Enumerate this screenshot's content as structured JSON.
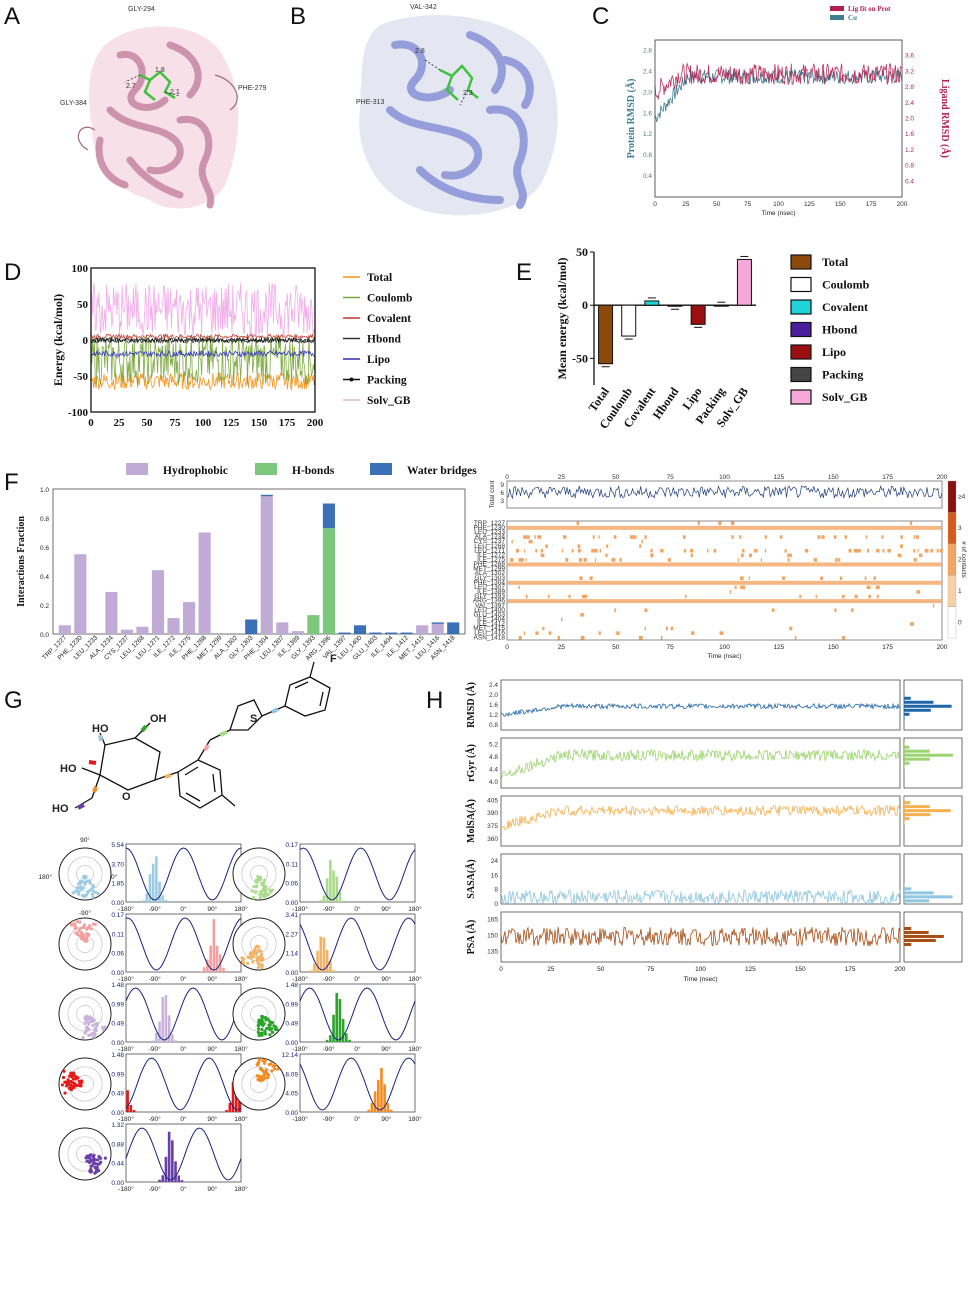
{
  "panel_labels": {
    "a": "A",
    "b": "B",
    "c": "C",
    "d": "D",
    "e": "E",
    "f": "F",
    "g": "G",
    "h": "H"
  },
  "panelA": {
    "residues": [
      "GLY-294",
      "GLY-384",
      "PHE-279"
    ],
    "distances": [
      "2.7",
      "1.8",
      "2.1"
    ]
  },
  "panelB": {
    "residues": [
      "VAL-342",
      "PHE-313"
    ],
    "distances": [
      "2.8",
      "2.3"
    ]
  },
  "chart_data": [
    {
      "id": "C",
      "type": "line",
      "xlabel": "Time (nsec)",
      "ylabel_left": "Protein RMSD (Å)",
      "ylabel_right": "Ligand RMSD (Å)",
      "xlim": [
        0,
        200
      ],
      "ylim_left": [
        0,
        3.0
      ],
      "ylim_right": [
        0,
        4.0
      ],
      "xticks": [
        "0",
        "25",
        "50",
        "75",
        "100",
        "125",
        "150",
        "175",
        "200"
      ],
      "yticks_left": [
        "0.4",
        "0.8",
        "1.2",
        "1.6",
        "2.0",
        "2.4",
        "2.8"
      ],
      "yticks_right": [
        "0.4",
        "0.8",
        "1.2",
        "1.6",
        "2.0",
        "2.4",
        "2.8",
        "3.2",
        "3.6"
      ],
      "legend": [
        "Lig fit on Prot",
        "Cα"
      ],
      "series": [
        {
          "name": "Lig fit on Prot",
          "color": "#b3204f",
          "mean": 2.35
        },
        {
          "name": "Cα",
          "color": "#3f7f93",
          "mean": 2.3
        }
      ]
    },
    {
      "id": "D",
      "type": "line",
      "xlabel": "",
      "ylabel": "Energy (kcal/mol)",
      "xlim": [
        0,
        200
      ],
      "ylim": [
        -100,
        100
      ],
      "xticks": [
        "0",
        "25",
        "50",
        "75",
        "100",
        "125",
        "150",
        "175",
        "200"
      ],
      "yticks": [
        "-100",
        "-50",
        "0",
        "50",
        "100"
      ],
      "series": [
        {
          "name": "Total",
          "color": "#f7941d",
          "mean": -57
        },
        {
          "name": "Coulomb",
          "color": "#7aa83c",
          "mean": -28
        },
        {
          "name": "Covalent",
          "color": "#c0392b",
          "mean": 5
        },
        {
          "name": "Hbond",
          "color": "#333333",
          "mean": -1
        },
        {
          "name": "Lipo",
          "color": "#2f2fbf",
          "mean": -19
        },
        {
          "name": "Packing",
          "color": "#111111",
          "mean": 0
        },
        {
          "name": "Solv_GB",
          "color": "#f0a8e8",
          "mean": 42
        }
      ]
    },
    {
      "id": "E",
      "type": "bar",
      "ylabel": "Mean energy (kcal/mol)",
      "ylim": [
        -75,
        50
      ],
      "yticks": [
        "-50",
        "0",
        "50"
      ],
      "categories": [
        "Total",
        "Coulomb",
        "Covalent",
        "Hbond",
        "Lipo",
        "Packing",
        "Solv_GB"
      ],
      "values": [
        -55,
        -29,
        4,
        -1,
        -18,
        0,
        43
      ],
      "colors": [
        "#8b4a0c",
        "#ffffff",
        "#1fd3d8",
        "#4b1e9e",
        "#9a1010",
        "#444444",
        "#f6a8d8"
      ]
    },
    {
      "id": "F",
      "type": "bar",
      "stacked": true,
      "ylabel": "Interactions Fraction",
      "ylim": [
        0,
        1.0
      ],
      "yticks": [
        "0.0",
        "0.2",
        "0.4",
        "0.6",
        "0.8",
        "1.0"
      ],
      "legend": [
        "Hydrophobic",
        "H-bonds",
        "Water bridges"
      ],
      "colors": [
        "#c0abd6",
        "#7cc77c",
        "#3b6fb6"
      ],
      "categories": [
        "TRP_1227",
        "PHE_1230",
        "LEU_1233",
        "ALA_1234",
        "CYS_1237",
        "LEU_1268",
        "LEU_1271",
        "ILE_1272",
        "ILE_1275",
        "PHE_1288",
        "MET_1299",
        "ALA_1302",
        "GLY_1303",
        "PHE_1304",
        "LEU_1307",
        "ILE_1389",
        "GLY_1393",
        "ARG_1396",
        "VAL_1397",
        "LEU_1400",
        "GLU_1403",
        "ILE_1404",
        "ILE_1412",
        "MET_1415",
        "LEU_1416",
        "ASN_1418"
      ],
      "series": [
        {
          "name": "Hydrophobic",
          "values": [
            0.06,
            0.55,
            0.0,
            0.29,
            0.03,
            0.05,
            0.44,
            0.11,
            0.22,
            0.7,
            0.0,
            0.0,
            0.0,
            0.95,
            0.08,
            0.02,
            0.0,
            0.0,
            0.0,
            0.0,
            0.0,
            0.0,
            0.0,
            0.06,
            0.07,
            0.0
          ]
        },
        {
          "name": "H-bonds",
          "values": [
            0,
            0,
            0,
            0,
            0,
            0,
            0,
            0,
            0,
            0,
            0,
            0,
            0,
            0,
            0,
            0,
            0.13,
            0.73,
            0,
            0,
            0,
            0,
            0,
            0,
            0,
            0
          ]
        },
        {
          "name": "Water bridges",
          "values": [
            0,
            0,
            0,
            0,
            0,
            0,
            0,
            0,
            0,
            0,
            0,
            0,
            0.1,
            0.01,
            0,
            0,
            0,
            0.17,
            0.01,
            0.06,
            0.01,
            0.01,
            0.01,
            0,
            0.01,
            0.08
          ]
        }
      ]
    },
    {
      "id": "F2",
      "type": "heatmap",
      "xlabel": "Time (nsec)",
      "ylabel_top": "Total cont",
      "ylabel_right": "# of contacts",
      "xticks": [
        "0",
        "25",
        "50",
        "75",
        "100",
        "125",
        "150",
        "175",
        "200"
      ],
      "cbar_ticks": [
        "0",
        "1",
        "2",
        "3",
        "≥4"
      ],
      "rows": [
        "TRP_1227",
        "PHE_1230",
        "LEU_1233",
        "ALA_1234",
        "CYS_1237",
        "LEU_1268",
        "LEU_1271",
        "ILE_1272",
        "ILE_1275",
        "PHE_1288",
        "MET_1299",
        "ALA_1302",
        "GLY_1303",
        "PHE_1304",
        "LEU_1307",
        "ILE_1389",
        "GLY_1393",
        "ARG_1396",
        "VAL_1397",
        "LEU_1400",
        "GLU_1403",
        "ILE_1404",
        "ILE_1412",
        "MET_1415",
        "LEU_1416",
        "ASN_1418"
      ],
      "row_fraction": [
        0.06,
        0.55,
        0.0,
        0.29,
        0.03,
        0.05,
        0.44,
        0.11,
        0.22,
        0.7,
        0.0,
        0.0,
        0.1,
        0.96,
        0.08,
        0.02,
        0.13,
        0.9,
        0.01,
        0.06,
        0.01,
        0.01,
        0.01,
        0.06,
        0.08,
        0.08
      ],
      "total_cont_mean": 6.5
    },
    {
      "id": "G",
      "type": "histogram",
      "description": "Torsion profiles",
      "xticks": [
        "-180°",
        "-90°",
        "0°",
        "90°",
        "180°"
      ],
      "polar_labels": [
        "90°",
        "180°",
        "0°",
        "-90°"
      ],
      "torsions": [
        {
          "color": "#9ccbe3",
          "ymax": "5.54",
          "yticks": [
            "0.00",
            "1.85",
            "3.70",
            "5.54"
          ],
          "peak": -90
        },
        {
          "color": "#a8dc8a",
          "ymax": "0.17",
          "yticks": [
            "0.00",
            "0.06",
            "0.11",
            "0.17"
          ],
          "peak": -80
        },
        {
          "color": "#f5a0a0",
          "ymax": "0.17",
          "yticks": [
            "0.00",
            "0.06",
            "0.11",
            "0.17"
          ],
          "peak": 95
        },
        {
          "color": "#f4b266",
          "ymax": "3.41",
          "yticks": [
            "0.00",
            "1.14",
            "2.27",
            "3.41"
          ],
          "peak": -110
        },
        {
          "color": "#c9b3dd",
          "ymax": "1.48",
          "yticks": [
            "0.00",
            "0.49",
            "0.99",
            "1.48"
          ],
          "peak": -60
        },
        {
          "color": "#2aa52a",
          "ymax": "1.48",
          "yticks": [
            "0.00",
            "0.49",
            "0.99",
            "1.48"
          ],
          "peak": -60
        },
        {
          "color": "#e41a1a",
          "ymax": "1.48",
          "yticks": [
            "0.00",
            "0.49",
            "0.99",
            "1.48"
          ],
          "peak": 170
        },
        {
          "color": "#f58a1f",
          "ymax": "12.14",
          "yticks": [
            "0.00",
            "4.05",
            "8.09",
            "12.14"
          ],
          "peak": 70
        },
        {
          "color": "#6a3fa8",
          "ymax": "1.32",
          "yticks": [
            "0.00",
            "0.44",
            "0.88",
            "1.32"
          ],
          "peak": -40
        }
      ]
    },
    {
      "id": "H",
      "type": "line",
      "xlabel": "Time (nsec)",
      "xlim": [
        0,
        200
      ],
      "xticks": [
        "0",
        "25",
        "50",
        "75",
        "100",
        "125",
        "150",
        "175",
        "200"
      ],
      "subplots": [
        {
          "ylabel": "RMSD (Å)",
          "color": "#1f66a8",
          "yticks": [
            "0.8",
            "1.2",
            "1.6",
            "2.0",
            "2.4"
          ],
          "ylim": [
            0.6,
            2.6
          ],
          "mean": 1.55
        },
        {
          "ylabel": "rGyr (Å)",
          "color": "#9bd46e",
          "yticks": [
            "4.0",
            "4.4",
            "4.8",
            "5.2"
          ],
          "ylim": [
            3.8,
            5.4
          ],
          "mean": 4.85
        },
        {
          "ylabel": "MolSA(Å)",
          "color": "#f5b04f",
          "yticks": [
            "360",
            "375",
            "390",
            "405"
          ],
          "ylim": [
            352,
            410
          ],
          "mean": 393
        },
        {
          "ylabel": "SASA(Å)",
          "color": "#8fc6e0",
          "yticks": [
            "0",
            "8",
            "16",
            "24"
          ],
          "ylim": [
            0,
            28
          ],
          "mean": 4
        },
        {
          "ylabel": "PSA (Å)",
          "color": "#a84d16",
          "yticks": [
            "135",
            "150",
            "165"
          ],
          "ylim": [
            125,
            172
          ],
          "mean": 149
        }
      ]
    }
  ]
}
